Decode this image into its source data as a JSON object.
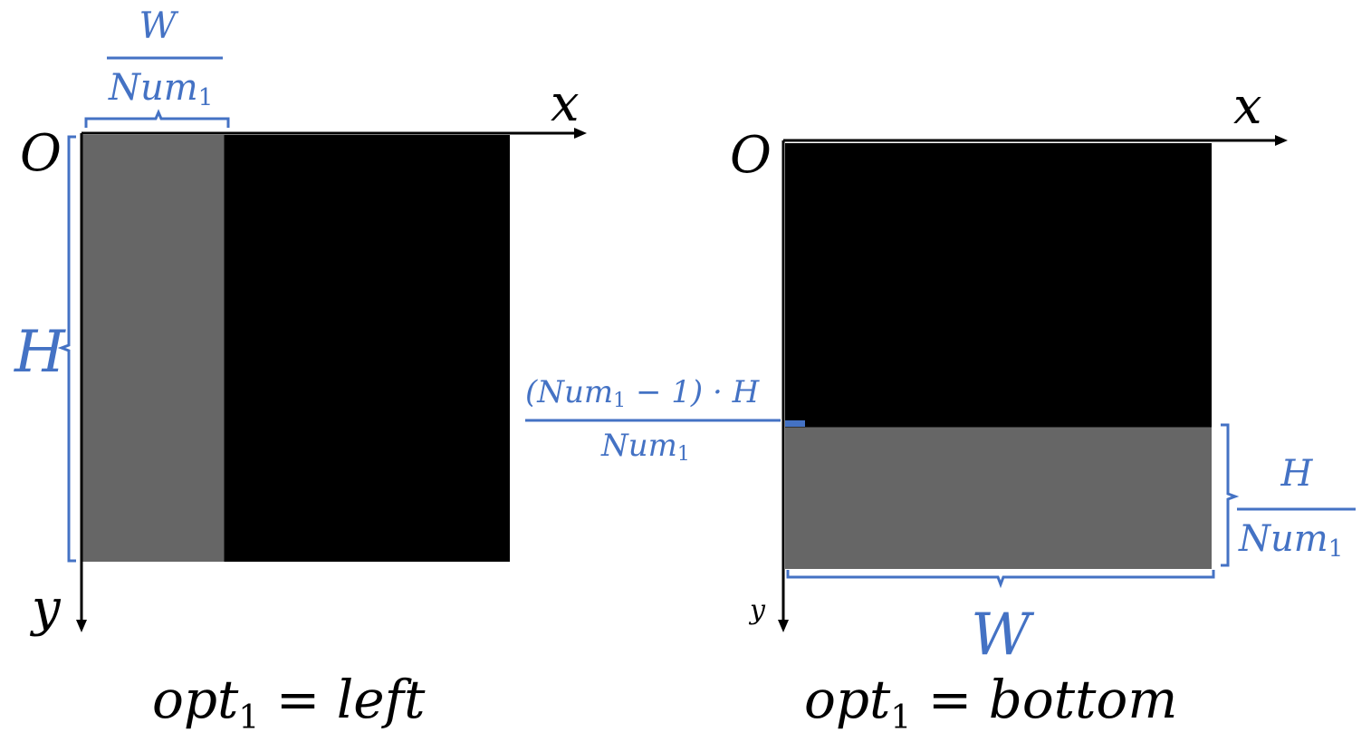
{
  "colors": {
    "accent_blue": "#4472C4",
    "dark_region": "#000000",
    "highlight_region": "#666666"
  },
  "left_panel": {
    "origin": "O",
    "x_axis": "x",
    "y_axis": "y",
    "width_fraction": {
      "numerator": "W",
      "denominator": "Num",
      "denominator_sub": "1"
    },
    "height_label": "H",
    "highlight_side": "left",
    "highlight_fraction": 0.333,
    "caption": {
      "lhs": "opt",
      "lhs_sub": "1",
      "rhs": "left"
    }
  },
  "right_panel": {
    "origin": "O",
    "x_axis": "x",
    "y_axis": "y",
    "offset_fraction": {
      "numerator_pre": "(Num",
      "numerator_sub": "1",
      "numerator_post": " − 1) · H",
      "denominator": "Num",
      "denominator_sub": "1"
    },
    "height_fraction": {
      "numerator": "H",
      "denominator": "Num",
      "denominator_sub": "1"
    },
    "width_label": "W",
    "highlight_side": "bottom",
    "highlight_fraction": 0.333,
    "caption": {
      "lhs": "opt",
      "lhs_sub": "1",
      "rhs": "bottom"
    }
  }
}
